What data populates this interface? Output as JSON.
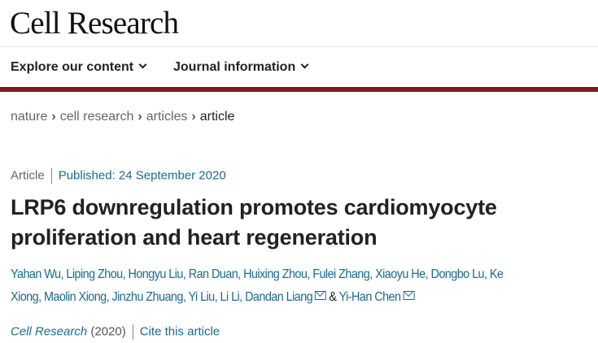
{
  "header": {
    "logo": "Cell Research",
    "nav": [
      {
        "label": "Explore our content"
      },
      {
        "label": "Journal information"
      }
    ]
  },
  "breadcrumb": [
    "nature",
    "cell research",
    "articles",
    "article"
  ],
  "article": {
    "type": "Article",
    "published": "Published: 24 September 2020",
    "title": "LRP6 downregulation promotes cardiomyocyte proliferation and heart regeneration",
    "authors_line1": "Yahan Wu, Liping Zhou, Hongyu Liu, Ran Duan, Huixing Zhou, Fulei Zhang, Xiaoyu He, Dongbo Lu, Ke",
    "authors_line2": "Xiong, Maolin Xiong, Jinzhu Zhuang, Yi Liu, Li Li, Dandan Liang",
    "amp": "&",
    "last_author": "Yi-Han Chen",
    "journal": "Cell Research",
    "year": "(2020)",
    "cite": "Cite this article"
  },
  "colors": {
    "accent_bar": "#7b1a22",
    "link": "#1c6a8c"
  }
}
